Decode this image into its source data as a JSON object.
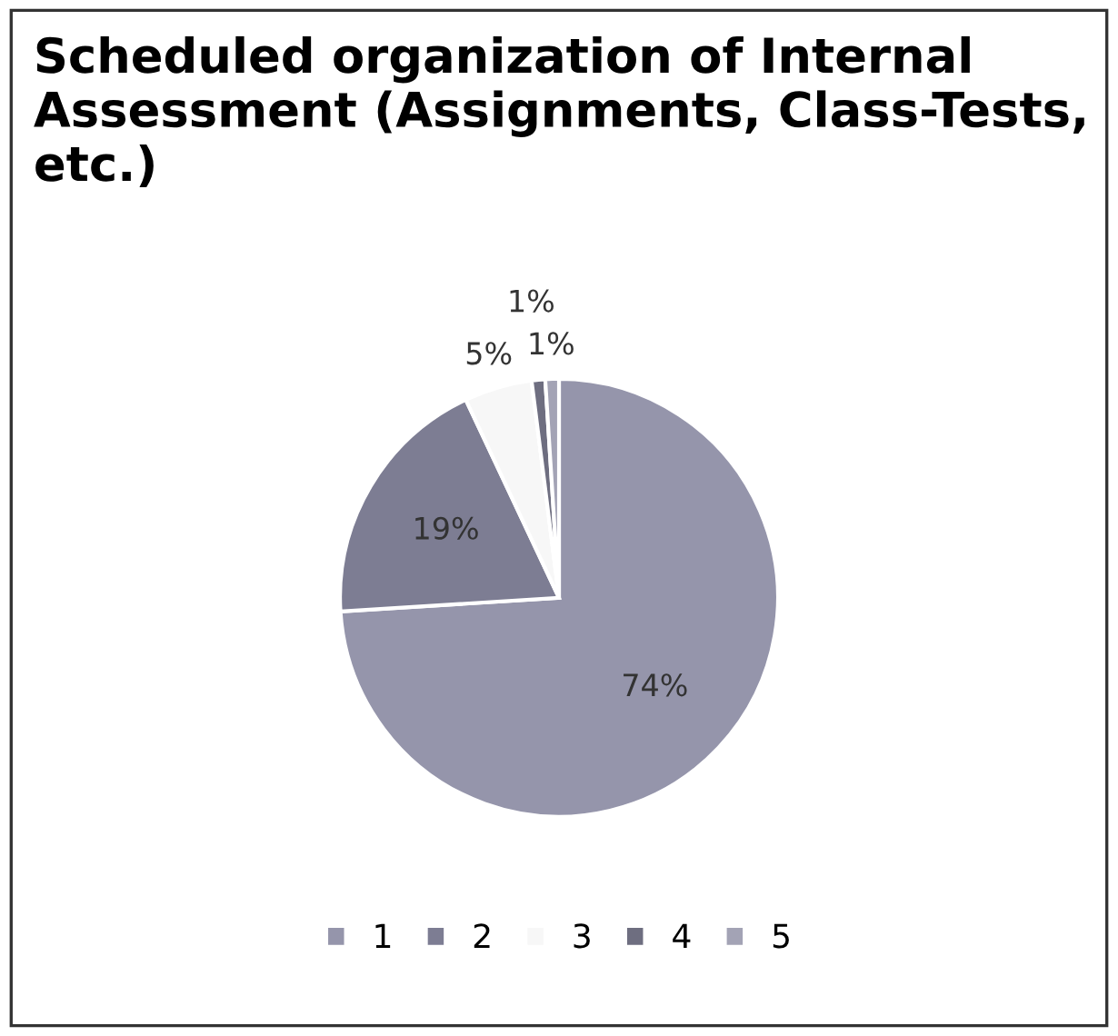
{
  "chart_data": {
    "type": "pie",
    "title": "Scheduled organization of Internal Assessment (Assignments, Class-Tests, etc.)",
    "categories": [
      "1",
      "2",
      "3",
      "4",
      "5"
    ],
    "values": [
      74,
      19,
      5,
      1,
      1
    ],
    "colors": [
      "#9595ab",
      "#7d7d93",
      "#f7f7f7",
      "#6e6e80",
      "#a3a3b5"
    ],
    "value_labels": [
      "74%",
      "19%",
      "5%",
      "1%",
      "1%"
    ],
    "legend": "bottom"
  }
}
